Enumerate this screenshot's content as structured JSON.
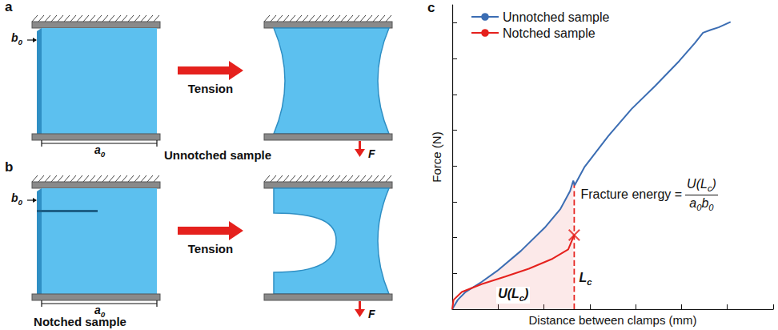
{
  "diagrams": [
    {
      "letter": "a",
      "caption": "Unnotched sample",
      "thickness": [
        "b",
        "0"
      ],
      "width": [
        "a",
        "0"
      ],
      "action": "Tension",
      "force": "F",
      "notched": false
    },
    {
      "letter": "b",
      "caption": "Notched sample",
      "thickness": [
        "b",
        "0"
      ],
      "width": [
        "a",
        "0"
      ],
      "action": "Tension",
      "force": "F",
      "notched": true
    }
  ],
  "chart_letter": "c",
  "chart_data": {
    "type": "line",
    "x_label": "Distance between clamps (mm)",
    "y_label": "Force (N)",
    "xlim": [
      0,
      70
    ],
    "xticks": [
      0,
      10,
      20,
      30,
      40,
      50,
      60,
      70
    ],
    "ylim": [
      0,
      85
    ],
    "yticks": [
      0,
      10,
      20,
      30,
      40,
      50,
      60,
      70,
      80
    ],
    "tick_labels": false,
    "grid": false,
    "legend": "upper left",
    "series": [
      {
        "name": "Unnotched sample",
        "color": "#3b6db3",
        "x": [
          0,
          1.2,
          2.9,
          6.4,
          9.8,
          15.0,
          20.2,
          23.6,
          25.7,
          26.4,
          26.7,
          28.8,
          34.0,
          39.1,
          44.3,
          49.5,
          52.9,
          54.7,
          56.4,
          58.1,
          60.7
        ],
        "values": [
          0,
          2.6,
          4.8,
          7.6,
          10.7,
          16.3,
          22.8,
          28.0,
          33.0,
          35.9,
          34.6,
          39.6,
          48.3,
          55.9,
          62.4,
          69.3,
          74.3,
          77.2,
          78.0,
          78.7,
          80.2
        ]
      },
      {
        "name": "Notched sample",
        "color": "#e5211d",
        "marker": "x",
        "x": [
          0,
          0.3,
          2.1,
          6.4,
          11.6,
          16.7,
          21.9,
          25.3,
          26.6
        ],
        "values": [
          0,
          2.6,
          4.8,
          7.0,
          9.1,
          11.3,
          14.1,
          16.7,
          20.7
        ]
      }
    ],
    "critical": {
      "x": 26.6,
      "y": 35.6,
      "label": [
        "L",
        "c"
      ]
    },
    "area_label": [
      "U(L",
      "c",
      ")"
    ],
    "formula": {
      "prefix": "Fracture energy =",
      "numerator": [
        "U(L",
        "c",
        ")"
      ],
      "denominator": [
        "a",
        "0",
        "b",
        "0"
      ]
    }
  }
}
